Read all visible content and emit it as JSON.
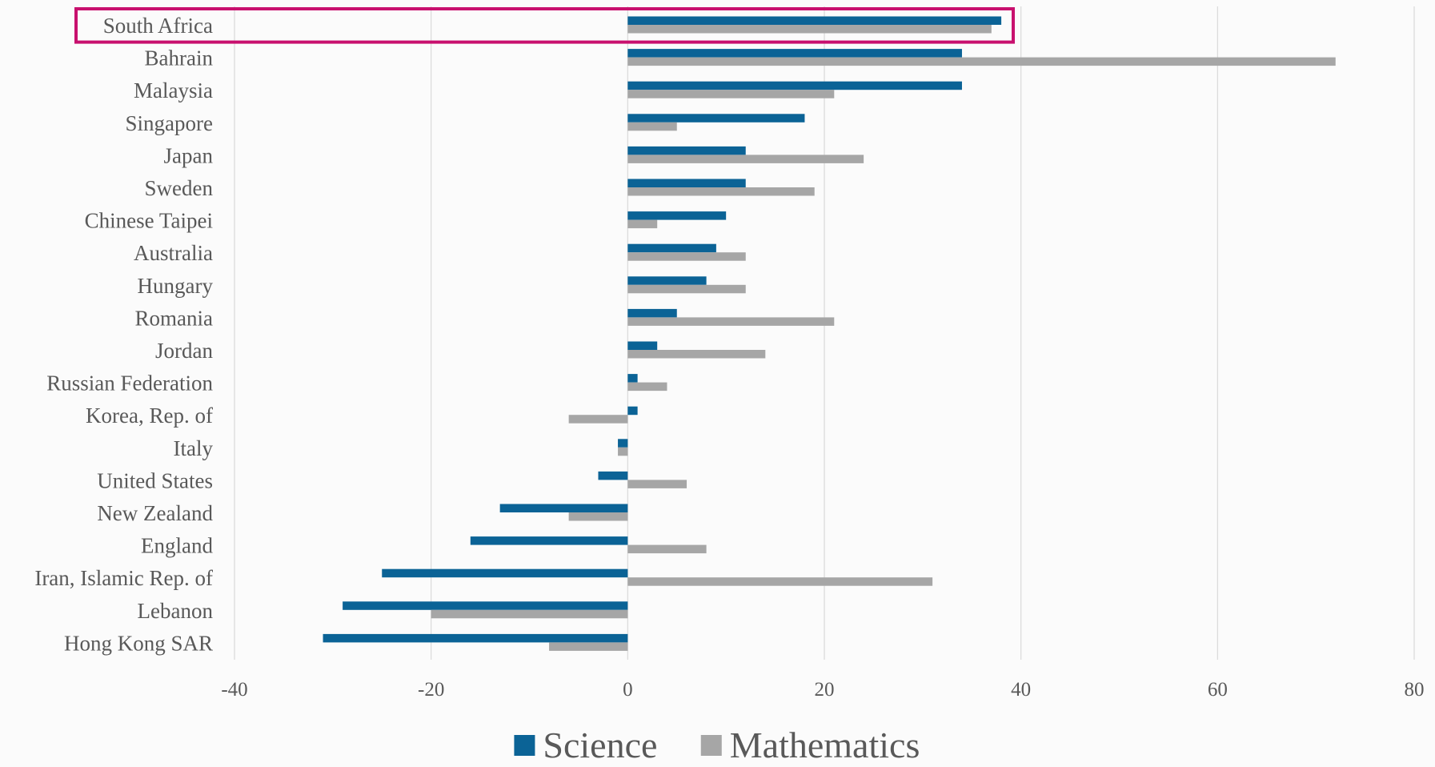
{
  "chart_data": {
    "type": "bar",
    "orientation": "horizontal",
    "categories": [
      "South Africa",
      "Bahrain",
      "Malaysia",
      "Singapore",
      "Japan",
      "Sweden",
      "Chinese Taipei",
      "Australia",
      "Hungary",
      "Romania",
      "Jordan",
      "Russian Federation",
      "Korea, Rep. of",
      "Italy",
      "United States",
      "New Zealand",
      "England",
      "Iran, Islamic Rep. of",
      "Lebanon",
      "Hong Kong SAR"
    ],
    "series": [
      {
        "name": "Science",
        "color": "#0b6396",
        "values": [
          38,
          34,
          34,
          18,
          12,
          12,
          10,
          9,
          8,
          5,
          3,
          1,
          1,
          -1,
          -3,
          -13,
          -16,
          -25,
          -29,
          -31
        ]
      },
      {
        "name": "Mathematics",
        "color": "#a6a6a6",
        "values": [
          37,
          72,
          21,
          5,
          24,
          19,
          3,
          12,
          12,
          21,
          14,
          4,
          -6,
          -1,
          6,
          -6,
          8,
          31,
          -20,
          -8
        ]
      }
    ],
    "xlim": [
      -40,
      80
    ],
    "xticks": [
      "-40",
      "-20",
      "0",
      "20",
      "40",
      "60",
      "80"
    ],
    "grid": true,
    "legend_position": "bottom",
    "highlight": {
      "category": "South Africa",
      "color": "#c8106e"
    },
    "title": "",
    "xlabel": "",
    "ylabel": ""
  }
}
